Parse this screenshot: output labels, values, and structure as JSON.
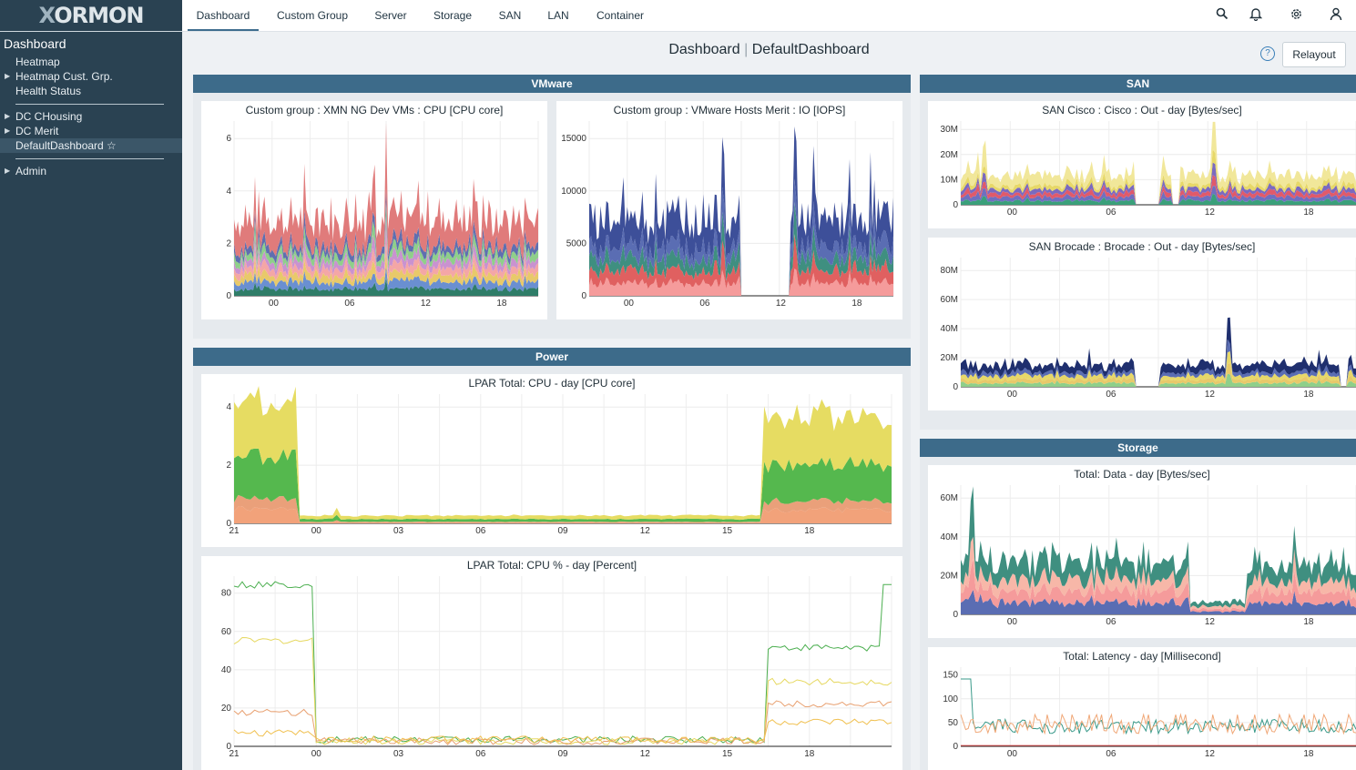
{
  "sidebar": {
    "title": "Dashboard",
    "items": [
      {
        "label": "Heatmap",
        "arrow": false,
        "active": false
      },
      {
        "label": "Heatmap Cust. Grp.",
        "arrow": true,
        "active": false
      },
      {
        "label": "Health Status",
        "arrow": false,
        "active": false
      },
      {
        "label": "DC CHousing",
        "arrow": true,
        "active": false
      },
      {
        "label": "DC Merit",
        "arrow": true,
        "active": false
      },
      {
        "label": "DefaultDashboard ☆",
        "arrow": false,
        "active": true
      },
      {
        "label": "Admin",
        "arrow": true,
        "active": false
      }
    ]
  },
  "logo": {
    "text_a": "X",
    "text_b": "ORMON"
  },
  "topbar": {
    "tabs": [
      "Dashboard",
      "Custom Group",
      "Server",
      "Storage",
      "SAN",
      "LAN",
      "Container"
    ],
    "active_tab": "Dashboard",
    "icons": [
      "search-icon",
      "bell-icon",
      "gear-icon",
      "user-icon"
    ]
  },
  "header": {
    "section": "Dashboard",
    "separator": "|",
    "name": "DefaultDashboard",
    "relayout_label": "Relayout",
    "help_symbol": "?"
  },
  "groups": {
    "vmware": "VMware",
    "san": "SAN",
    "power": "Power",
    "storage": "Storage"
  },
  "colors": {
    "accent": "#3d6b8a",
    "sidebar": "#2a4252"
  },
  "cards": [
    {
      "id": "vm-cpu",
      "title": "Custom group : XMN NG Dev VMs : CPU [CPU core]",
      "yticks": [
        "0",
        "2",
        "4",
        "6"
      ],
      "xticks": [
        "00",
        "06",
        "12",
        "18"
      ]
    },
    {
      "id": "vm-io",
      "title": "Custom group : VMware Hosts Merit : IO [IOPS]",
      "yticks": [
        "0",
        "5000",
        "10000",
        "15000"
      ],
      "xticks": [
        "00",
        "06",
        "12",
        "18"
      ]
    },
    {
      "id": "san-cisco",
      "title": "SAN Cisco : Cisco : Out - day [Bytes/sec]",
      "yticks": [
        "0",
        "10M",
        "20M",
        "30M"
      ],
      "xticks": [
        "00",
        "06",
        "12",
        "18"
      ]
    },
    {
      "id": "san-brocade",
      "title": "SAN Brocade : Brocade : Out - day [Bytes/sec]",
      "yticks": [
        "0",
        "20M",
        "40M",
        "60M",
        "80M"
      ],
      "xticks": [
        "00",
        "06",
        "12",
        "18"
      ]
    },
    {
      "id": "lpar-cpu",
      "title": "LPAR Total: CPU - day [CPU core]",
      "yticks": [
        "0",
        "2",
        "4"
      ],
      "xticks": [
        "21",
        "00",
        "03",
        "06",
        "09",
        "12",
        "15",
        "18"
      ]
    },
    {
      "id": "lpar-pct",
      "title": "LPAR Total: CPU % - day [Percent]",
      "yticks": [
        "0",
        "20",
        "40",
        "60",
        "80"
      ],
      "xticks": [
        "21",
        "00",
        "03",
        "06",
        "09",
        "12",
        "15",
        "18"
      ]
    },
    {
      "id": "st-data",
      "title": "Total: Data - day [Bytes/sec]",
      "yticks": [
        "0",
        "20M",
        "40M",
        "60M"
      ],
      "xticks": [
        "00",
        "06",
        "12",
        "18"
      ]
    },
    {
      "id": "st-lat",
      "title": "Total: Latency - day [Millisecond]",
      "yticks": [
        "0",
        "50",
        "100",
        "150"
      ],
      "xticks": [
        "00",
        "06",
        "12",
        "18"
      ]
    }
  ]
}
